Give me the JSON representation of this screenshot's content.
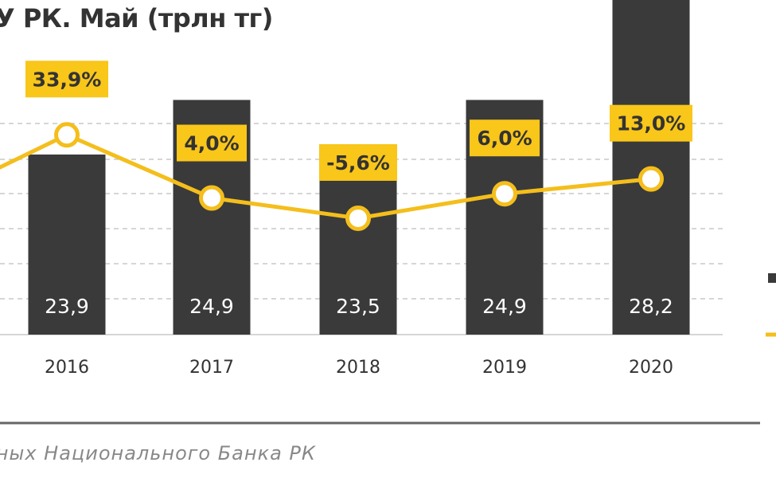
{
  "title": "У РК. Май (трлн тг)",
  "source": "нных Национального Банка РК",
  "colors": {
    "bar": "#3a3a3a",
    "line": "#f4be1c",
    "label_box": "#f9c61a",
    "grid": "#c8c8c8",
    "divider": "#666666"
  },
  "chart_data": {
    "type": "bar",
    "categories": [
      "2016",
      "2017",
      "2018",
      "2019",
      "2020"
    ],
    "series": [
      {
        "type": "bar",
        "values": [
          23.9,
          24.9,
          23.5,
          24.9,
          28.2
        ],
        "labels": [
          "23,9",
          "24,9",
          "23,5",
          "24,9",
          "28,2"
        ]
      },
      {
        "type": "line",
        "values": [
          33.9,
          4.0,
          -5.6,
          6.0,
          13.0
        ],
        "labels": [
          "33,9%",
          "4,0%",
          "-5,6%",
          "6,0%",
          "13,0%"
        ]
      }
    ],
    "xlabel": "",
    "ylabel": "",
    "grid": true
  }
}
